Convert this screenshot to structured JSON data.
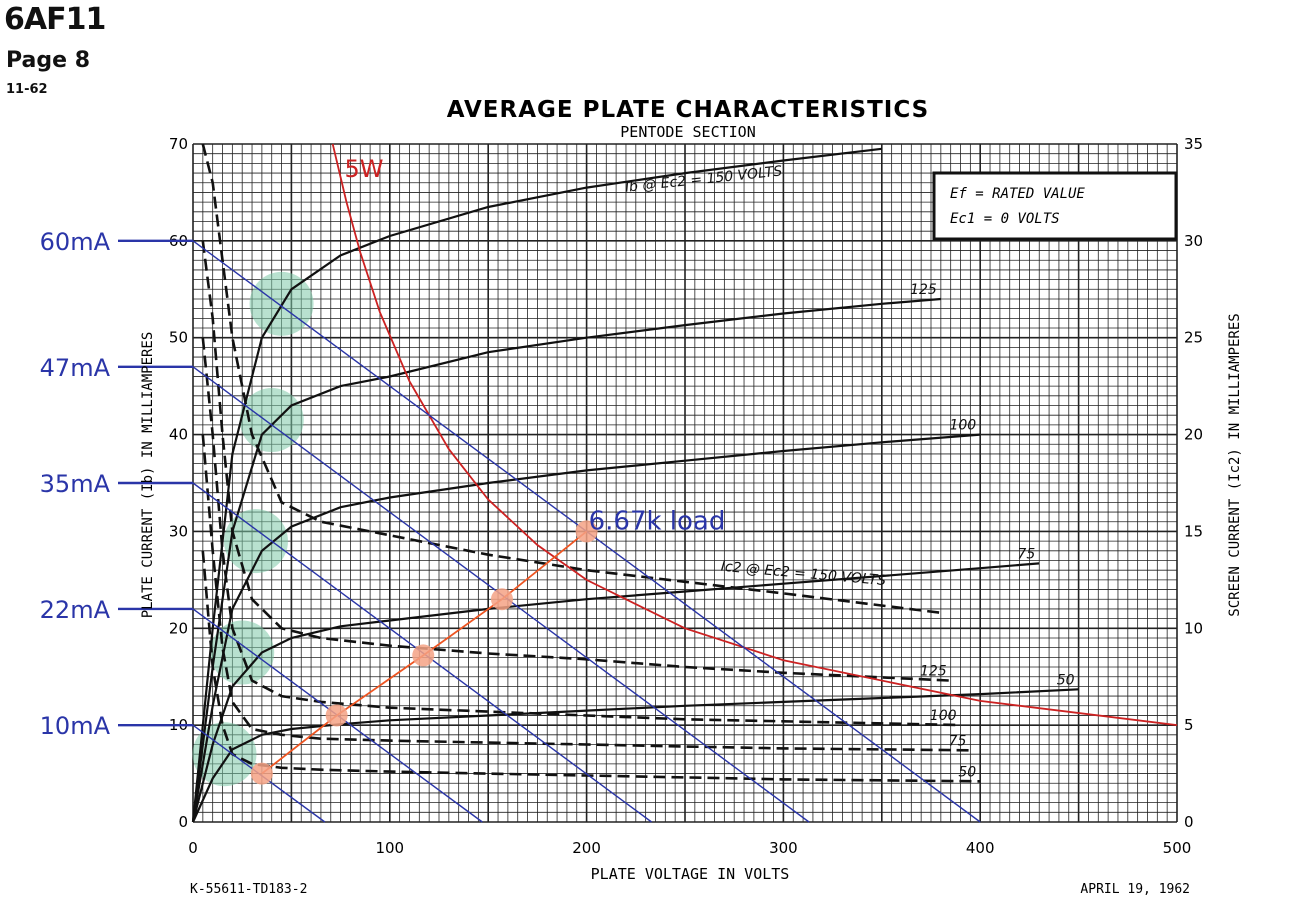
{
  "header": {
    "tube_type": "6AF11",
    "page": "Page 8",
    "code": "11-62"
  },
  "chart_data": {
    "type": "line",
    "title": "AVERAGE PLATE CHARACTERISTICS",
    "subtitle": "PENTODE SECTION",
    "xlabel": "PLATE VOLTAGE IN VOLTS",
    "ylabel": "PLATE CURRENT (Ib) IN MILLIAMPERES",
    "y2label": "SCREEN CURRENT (Ic2) IN MILLIAMPERES",
    "xlim": [
      0,
      500
    ],
    "ylim": [
      0,
      70
    ],
    "y2lim": [
      0,
      35
    ],
    "x_ticks": [
      0,
      100,
      200,
      300,
      400,
      500
    ],
    "y_ticks": [
      0,
      10,
      20,
      30,
      40,
      50,
      60,
      70
    ],
    "y2_ticks": [
      0,
      5,
      10,
      15,
      20,
      25,
      30,
      35
    ],
    "grid": true,
    "legend_box": [
      "Ef = RATED VALUE",
      "Ec1 = 0 VOLTS"
    ],
    "footer_left": "K-55611-TD183-2",
    "footer_right": "APRIL 19, 1962",
    "plate_curves": [
      {
        "label": "Ib @ Ec2 = 150 VOLTS",
        "x": [
          0,
          10,
          20,
          35,
          50,
          75,
          100,
          150,
          200,
          250,
          300,
          350
        ],
        "y": [
          0,
          20,
          38,
          50,
          55,
          58.5,
          60.5,
          63.5,
          65.5,
          67,
          68.3,
          69.5
        ]
      },
      {
        "label": "125",
        "x": [
          0,
          10,
          20,
          35,
          50,
          75,
          100,
          150,
          200,
          250,
          300,
          350,
          380
        ],
        "y": [
          0,
          16,
          30,
          40,
          43,
          45,
          46,
          48.5,
          50,
          51.3,
          52.5,
          53.5,
          54
        ]
      },
      {
        "label": "100",
        "x": [
          0,
          10,
          20,
          35,
          50,
          75,
          100,
          150,
          200,
          250,
          300,
          350,
          400
        ],
        "y": [
          0,
          12,
          22,
          28,
          30.5,
          32.5,
          33.5,
          35,
          36.3,
          37.3,
          38.3,
          39.2,
          40
        ]
      },
      {
        "label": "75",
        "x": [
          0,
          10,
          20,
          35,
          50,
          75,
          100,
          150,
          200,
          250,
          300,
          350,
          400,
          430
        ],
        "y": [
          0,
          8,
          14,
          17.5,
          19,
          20.2,
          20.8,
          22,
          23,
          23.8,
          24.6,
          25.4,
          26.2,
          26.7
        ]
      },
      {
        "label": "50",
        "x": [
          0,
          10,
          20,
          35,
          50,
          75,
          100,
          150,
          200,
          250,
          300,
          350,
          400,
          450
        ],
        "y": [
          0,
          4.5,
          7.5,
          9,
          9.6,
          10.1,
          10.5,
          11,
          11.5,
          12,
          12.4,
          12.8,
          13.2,
          13.7
        ]
      }
    ],
    "screen_curves": [
      {
        "label": "Ic2 @ Ec2 = 150 VOLTS",
        "x": [
          5,
          10,
          15,
          20,
          30,
          45,
          65,
          100,
          150,
          200,
          250,
          300,
          380
        ],
        "y": [
          35,
          33,
          29,
          25,
          20,
          16.5,
          15.5,
          14.8,
          13.8,
          13,
          12.4,
          11.8,
          10.8
        ]
      },
      {
        "label": "125",
        "x": [
          5,
          10,
          15,
          20,
          30,
          45,
          65,
          100,
          150,
          200,
          250,
          300,
          385
        ],
        "y": [
          30,
          26,
          20,
          15,
          11.5,
          10,
          9.5,
          9.1,
          8.7,
          8.4,
          8,
          7.7,
          7.3
        ]
      },
      {
        "label": "100",
        "x": [
          5,
          10,
          15,
          20,
          30,
          45,
          65,
          100,
          150,
          200,
          250,
          300,
          390
        ],
        "y": [
          25,
          20,
          14,
          10,
          7.3,
          6.5,
          6.2,
          5.9,
          5.7,
          5.5,
          5.3,
          5.2,
          5.0
        ]
      },
      {
        "label": "75",
        "x": [
          5,
          10,
          15,
          20,
          30,
          45,
          65,
          100,
          150,
          200,
          250,
          300,
          395
        ],
        "y": [
          20,
          14,
          9,
          6.2,
          4.8,
          4.5,
          4.3,
          4.2,
          4.1,
          4,
          3.9,
          3.8,
          3.7
        ]
      },
      {
        "label": "50",
        "x": [
          5,
          10,
          15,
          20,
          30,
          45,
          65,
          100,
          150,
          200,
          250,
          300,
          400
        ],
        "y": [
          14,
          8,
          5,
          3.5,
          3,
          2.8,
          2.7,
          2.6,
          2.5,
          2.4,
          2.3,
          2.2,
          2.1
        ]
      }
    ],
    "power_curve": {
      "label": "5W",
      "x": [
        71,
        78,
        85,
        95,
        110,
        130,
        150,
        175,
        200,
        250,
        300,
        400,
        500
      ],
      "y": [
        70,
        64,
        58.8,
        52.6,
        45.5,
        38.5,
        33.3,
        28.6,
        25,
        20,
        16.7,
        12.5,
        10
      ]
    },
    "load_lines": [
      {
        "label": "60mA",
        "x": [
          0,
          400
        ],
        "y": [
          60,
          0
        ]
      },
      {
        "label": "47mA",
        "x": [
          0,
          313
        ],
        "y": [
          47,
          0
        ]
      },
      {
        "label": "35mA",
        "x": [
          0,
          233
        ],
        "y": [
          35,
          0
        ]
      },
      {
        "label": "22mA",
        "x": [
          0,
          147
        ],
        "y": [
          22,
          0
        ]
      },
      {
        "label": "10mA",
        "x": [
          0,
          67
        ],
        "y": [
          10,
          0
        ]
      }
    ],
    "load_line_labels": [
      "60mA",
      "47mA",
      "35mA",
      "22mA",
      "10mA"
    ],
    "operating_line": {
      "label": "6.67k load",
      "x": [
        35,
        73,
        117,
        157,
        200
      ],
      "y": [
        5,
        11,
        17.2,
        23,
        30
      ]
    },
    "knee_points": [
      {
        "x": 45,
        "y": 53.5
      },
      {
        "x": 40,
        "y": 41.5
      },
      {
        "x": 32,
        "y": 29
      },
      {
        "x": 25,
        "y": 17.5
      },
      {
        "x": 16,
        "y": 7
      }
    ],
    "colors": {
      "grid": "#222222",
      "curve": "#111111",
      "power": "#cc2222",
      "load": "#2a35a8",
      "label_blue": "#2a35a8",
      "operating": "#ee5522",
      "operating_marker": "#f4a285",
      "knee": "#7dc8a8"
    }
  }
}
